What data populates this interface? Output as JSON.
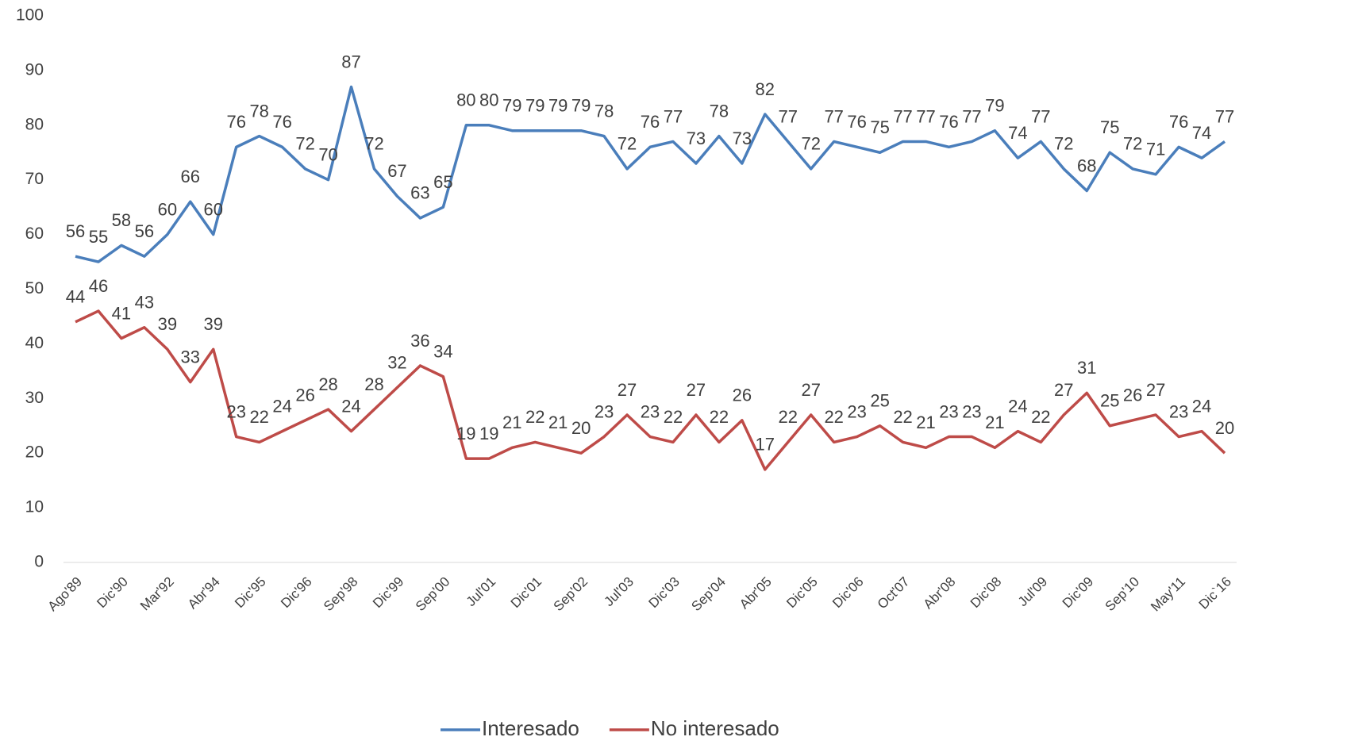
{
  "chart_data": {
    "type": "line",
    "categories": [
      "Ago'89",
      null,
      "Dic'90",
      null,
      "Mar'92",
      null,
      "Abr'94",
      null,
      "Dic'95",
      null,
      "Dic'96",
      null,
      "Sep'98",
      null,
      "Dic'99",
      null,
      "Sep'00",
      null,
      "Jul'01",
      null,
      "Dic'01",
      null,
      "Sep'02",
      null,
      "Jul'03",
      null,
      "Dic'03",
      null,
      "Sep'04",
      null,
      "Abr'05",
      null,
      "Dic'05",
      null,
      "Dic'06",
      null,
      "Oct'07",
      null,
      "Abr'08",
      null,
      "Dic'08",
      null,
      "Jul'09",
      null,
      "Dic'09",
      null,
      "Sep'10",
      null,
      "May'11",
      null,
      "Dic`16"
    ],
    "series": [
      {
        "name": "Interesado",
        "color": "#4a7ebb",
        "values": [
          56,
          55,
          58,
          56,
          60,
          66,
          60,
          76,
          78,
          76,
          72,
          70,
          87,
          72,
          67,
          63,
          65,
          80,
          80,
          79,
          79,
          79,
          79,
          78,
          72,
          76,
          77,
          73,
          78,
          73,
          82,
          77,
          72,
          77,
          76,
          75,
          77,
          77,
          76,
          77,
          79,
          74,
          77,
          72,
          68,
          75,
          72,
          71,
          76,
          74,
          77
        ]
      },
      {
        "name": "No interesado",
        "color": "#be4b48",
        "values": [
          44,
          46,
          41,
          43,
          39,
          33,
          39,
          23,
          22,
          24,
          26,
          28,
          24,
          28,
          32,
          36,
          34,
          19,
          19,
          21,
          22,
          21,
          20,
          23,
          27,
          23,
          22,
          27,
          22,
          26,
          17,
          22,
          27,
          22,
          23,
          25,
          22,
          21,
          23,
          23,
          21,
          24,
          22,
          27,
          31,
          25,
          26,
          27,
          23,
          24,
          20
        ]
      }
    ],
    "ylim": [
      0,
      100
    ],
    "yticks": [
      0,
      10,
      20,
      30,
      40,
      50,
      60,
      70,
      80,
      90,
      100
    ],
    "grid": false,
    "legend": "bottom"
  }
}
